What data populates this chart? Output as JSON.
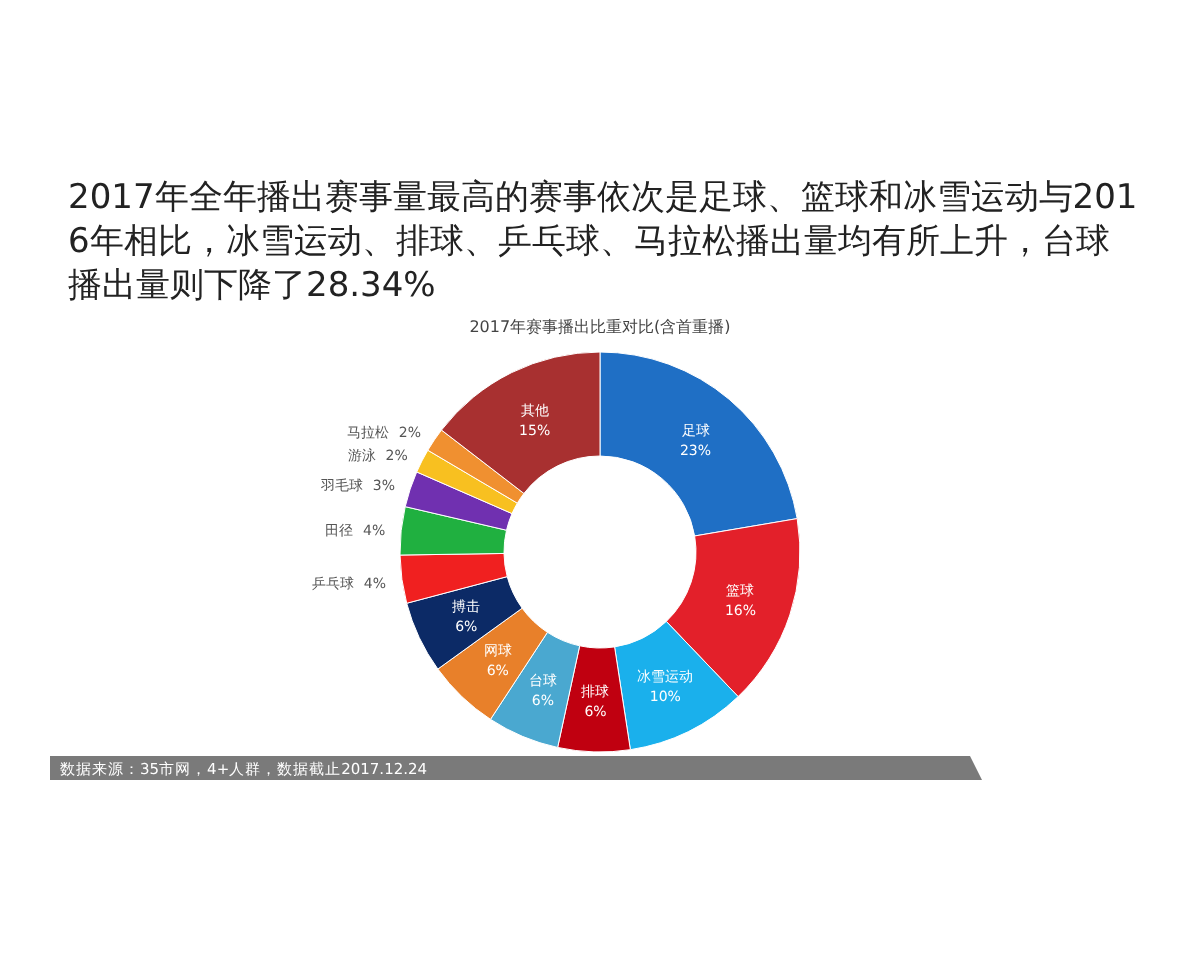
{
  "chart_data": {
    "type": "donut",
    "title": "2017年全年播出赛事量最高的赛事依次是足球、篮球和冰雪运动与2016年相比，冰雪运动、排球、乒乓球、马拉松播出量均有所上升，台球播出量则下降了28.34%",
    "subtitle": "2017年赛事播出比重对比(含首重播)",
    "categories": [
      "足球",
      "篮球",
      "冰雪运动",
      "排球",
      "台球",
      "网球",
      "搏击",
      "乒乓球",
      "田径",
      "羽毛球",
      "游泳",
      "马拉松",
      "其他"
    ],
    "values": [
      23,
      16,
      10,
      6,
      6,
      6,
      6,
      4,
      4,
      3,
      2,
      2,
      15
    ],
    "value_labels": [
      "23%",
      "16%",
      "10%",
      "6%",
      "6%",
      "6%",
      "6%",
      "4%",
      "4%",
      "3%",
      "2%",
      "2%",
      "15%"
    ],
    "colors": [
      "#1f6fc5",
      "#e3202a",
      "#1ab0ec",
      "#c00010",
      "#4aa8d0",
      "#e8802a",
      "#0c2a66",
      "#f02020",
      "#20b040",
      "#7030b0",
      "#f8c020",
      "#f09030",
      "#a83030"
    ],
    "annotations": [
      "数据来源：35市网，4+人群，数据截止2017.12.24"
    ]
  }
}
